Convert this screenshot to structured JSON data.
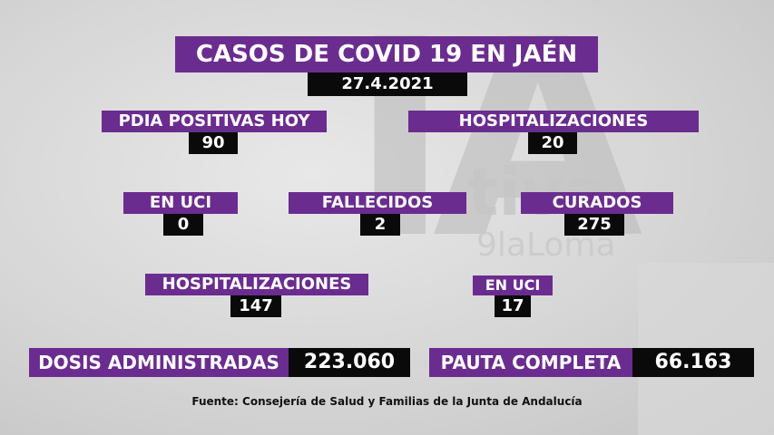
{
  "title": "CASOS DE COVID 19 EN JAÉN",
  "date": "27.4.2021",
  "watermark": {
    "big": "IA",
    "brand": "tiva",
    "sub": "9laLoma"
  },
  "pdia": {
    "label": "PDIA POSITIVAS HOY",
    "value": "90"
  },
  "hosp_today": {
    "label": "HOSPITALIZACIONES",
    "value": "20"
  },
  "uci_today": {
    "label": "EN UCI",
    "value": "0"
  },
  "deaths": {
    "label": "FALLECIDOS",
    "value": "2"
  },
  "cured": {
    "label": "CURADOS",
    "value": "275"
  },
  "hosp_total": {
    "label": "HOSPITALIZACIONES",
    "value": "147"
  },
  "uci_total": {
    "label": "EN UCI",
    "value": "17"
  },
  "doses": {
    "label": "DOSIS ADMINISTRADAS",
    "value": "223.060"
  },
  "complete": {
    "label": "PAUTA COMPLETA",
    "value": "66.163"
  },
  "source": "Fuente: Consejería de Salud y Familias de la Junta de Andalucía",
  "colors": {
    "purple": "#6b2c8f",
    "black": "#0a0a0a",
    "background": "#d6d6d6"
  }
}
